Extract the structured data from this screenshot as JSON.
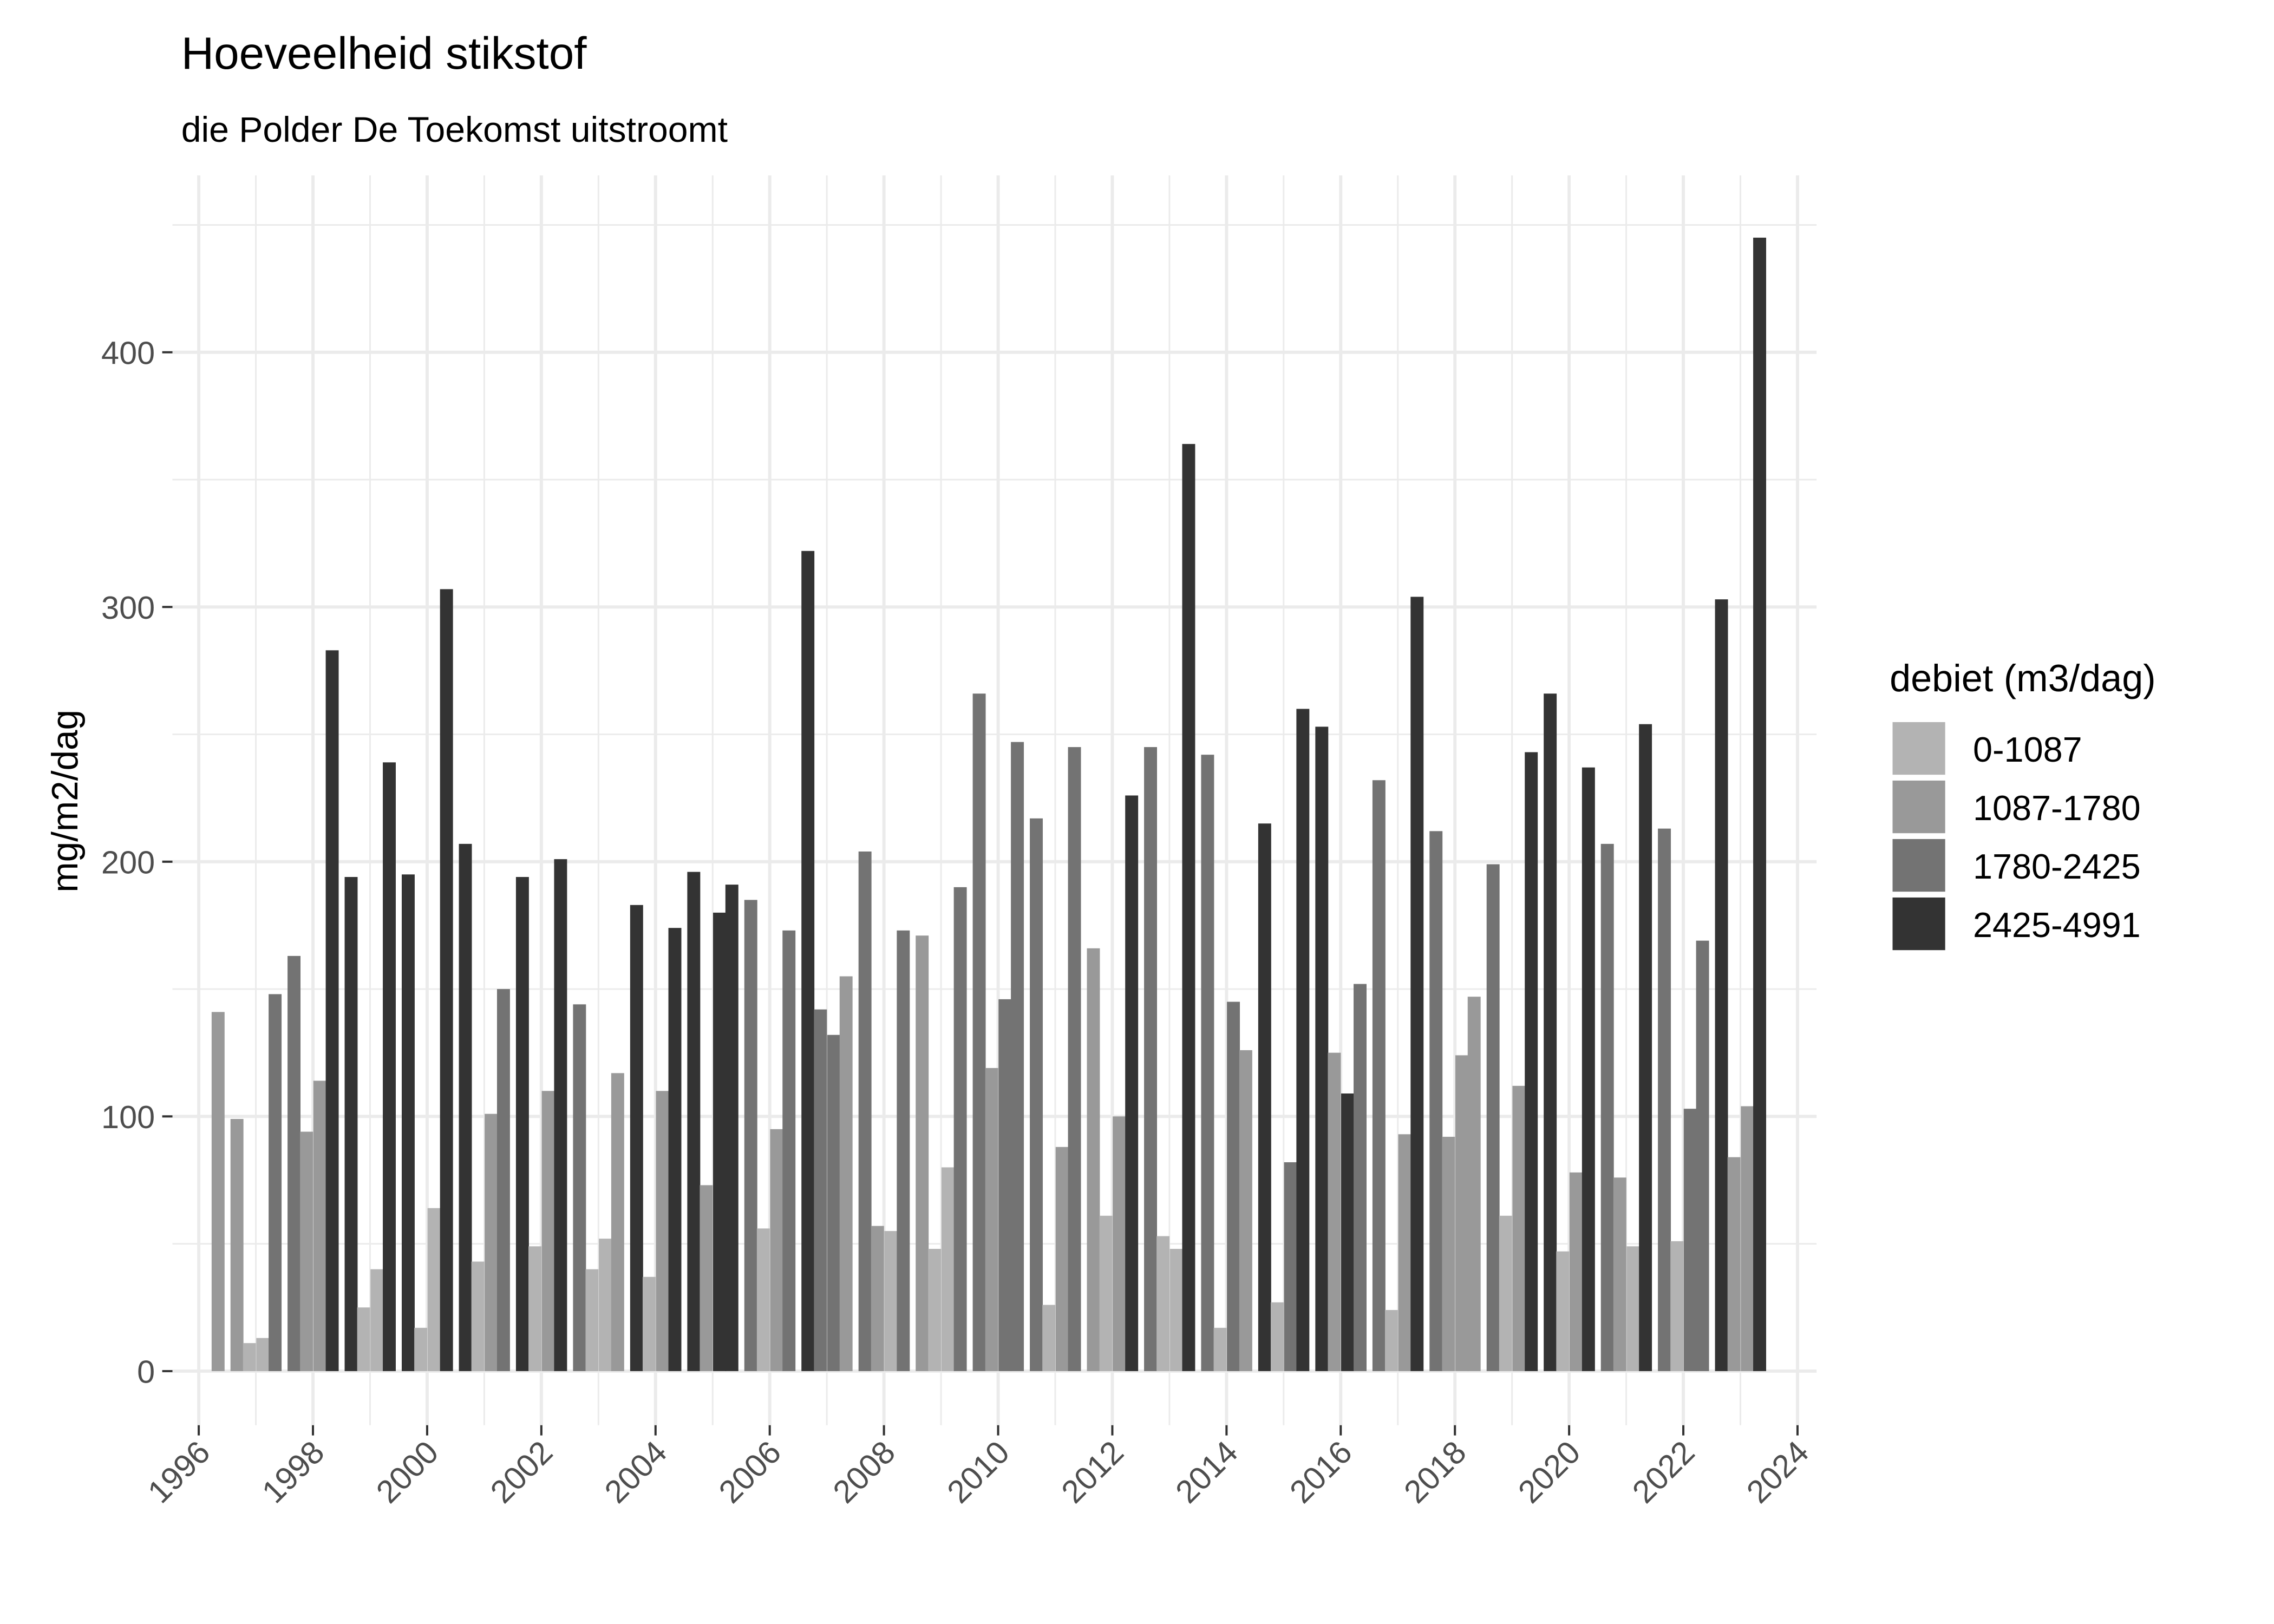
{
  "chart_data": {
    "type": "bar",
    "title": "Hoeveelheid stikstof",
    "subtitle": "die Polder De Toekomst uitstroomt",
    "xlabel": "",
    "ylabel": "mg/m2/dag",
    "xlim": [
      "1996-01-01",
      "2024-01-01"
    ],
    "ylim": [
      0,
      460
    ],
    "x_ticks": [
      "1996",
      "1998",
      "2000",
      "2002",
      "2004",
      "2006",
      "2008",
      "2010",
      "2012",
      "2014",
      "2016",
      "2018",
      "2020",
      "2022",
      "2024"
    ],
    "y_ticks": [
      0,
      100,
      200,
      300,
      400
    ],
    "grid": true,
    "legend": {
      "title": "debiet (m3/dag)",
      "position": "right",
      "entries": [
        {
          "label": "0-1087",
          "color": "#b3b3b3"
        },
        {
          "label": "1087-1780",
          "color": "#999999"
        },
        {
          "label": "1780-2425",
          "color": "#737373"
        },
        {
          "label": "2425-4991",
          "color": "#333333"
        }
      ]
    },
    "columns": [
      "date",
      "value",
      "debiet"
    ],
    "rows": [
      [
        "1996-05-04",
        141,
        "1087-1780"
      ],
      [
        "1996-09-02",
        99,
        "1087-1780"
      ],
      [
        "1996-11-21",
        11,
        "0-1087"
      ],
      [
        "1997-02-14",
        13,
        "0-1087"
      ],
      [
        "1997-05-04",
        148,
        "1780-2425"
      ],
      [
        "1997-09-02",
        163,
        "1780-2425"
      ],
      [
        "1997-11-21",
        94,
        "1087-1780"
      ],
      [
        "1998-02-14",
        114,
        "1087-1780"
      ],
      [
        "1998-05-04",
        283,
        "2425-4991"
      ],
      [
        "1998-09-02",
        194,
        "2425-4991"
      ],
      [
        "1998-11-21",
        25,
        "0-1087"
      ],
      [
        "1999-02-14",
        40,
        "0-1087"
      ],
      [
        "1999-05-04",
        239,
        "2425-4991"
      ],
      [
        "1999-09-02",
        195,
        "2425-4991"
      ],
      [
        "1999-11-21",
        17,
        "0-1087"
      ],
      [
        "2000-02-14",
        64,
        "0-1087"
      ],
      [
        "2000-05-04",
        307,
        "2425-4991"
      ],
      [
        "2000-09-02",
        207,
        "2425-4991"
      ],
      [
        "2000-11-21",
        43,
        "0-1087"
      ],
      [
        "2001-02-14",
        101,
        "1087-1780"
      ],
      [
        "2001-05-04",
        150,
        "1780-2425"
      ],
      [
        "2001-09-02",
        194,
        "2425-4991"
      ],
      [
        "2001-11-21",
        49,
        "0-1087"
      ],
      [
        "2002-02-14",
        110,
        "1087-1780"
      ],
      [
        "2002-05-04",
        201,
        "2425-4991"
      ],
      [
        "2002-09-02",
        144,
        "1780-2425"
      ],
      [
        "2002-11-21",
        40,
        "0-1087"
      ],
      [
        "2003-02-14",
        52,
        "0-1087"
      ],
      [
        "2003-05-04",
        117,
        "1087-1780"
      ],
      [
        "2003-09-02",
        183,
        "2425-4991"
      ],
      [
        "2003-11-21",
        37,
        "0-1087"
      ],
      [
        "2004-02-14",
        110,
        "1087-1780"
      ],
      [
        "2004-05-04",
        174,
        "2425-4991"
      ],
      [
        "2004-09-02",
        196,
        "2425-4991"
      ],
      [
        "2004-11-21",
        73,
        "1087-1780"
      ],
      [
        "2005-02-14",
        180,
        "2425-4991"
      ],
      [
        "2005-05-04",
        191,
        "2425-4991"
      ],
      [
        "2005-09-02",
        185,
        "1780-2425"
      ],
      [
        "2005-11-21",
        56,
        "0-1087"
      ],
      [
        "2006-02-14",
        95,
        "1087-1780"
      ],
      [
        "2006-05-04",
        173,
        "1780-2425"
      ],
      [
        "2006-09-02",
        322,
        "2425-4991"
      ],
      [
        "2006-11-21",
        142,
        "1780-2425"
      ],
      [
        "2007-02-14",
        132,
        "1780-2425"
      ],
      [
        "2007-05-04",
        155,
        "1087-1780"
      ],
      [
        "2007-09-02",
        204,
        "1780-2425"
      ],
      [
        "2007-11-21",
        57,
        "1087-1780"
      ],
      [
        "2008-02-14",
        55,
        "0-1087"
      ],
      [
        "2008-05-04",
        173,
        "1780-2425"
      ],
      [
        "2008-09-02",
        171,
        "1087-1780"
      ],
      [
        "2008-11-21",
        48,
        "0-1087"
      ],
      [
        "2009-02-14",
        80,
        "0-1087"
      ],
      [
        "2009-05-04",
        190,
        "1780-2425"
      ],
      [
        "2009-09-02",
        266,
        "1780-2425"
      ],
      [
        "2009-11-21",
        119,
        "1087-1780"
      ],
      [
        "2010-02-14",
        146,
        "1780-2425"
      ],
      [
        "2010-05-04",
        247,
        "1780-2425"
      ],
      [
        "2010-09-02",
        217,
        "1780-2425"
      ],
      [
        "2010-11-21",
        26,
        "0-1087"
      ],
      [
        "2011-02-14",
        88,
        "1087-1780"
      ],
      [
        "2011-05-04",
        245,
        "1780-2425"
      ],
      [
        "2011-09-02",
        166,
        "1087-1780"
      ],
      [
        "2011-11-21",
        61,
        "0-1087"
      ],
      [
        "2012-02-14",
        100,
        "1087-1780"
      ],
      [
        "2012-05-04",
        226,
        "2425-4991"
      ],
      [
        "2012-09-02",
        245,
        "1780-2425"
      ],
      [
        "2012-11-21",
        53,
        "0-1087"
      ],
      [
        "2013-02-14",
        48,
        "0-1087"
      ],
      [
        "2013-05-04",
        364,
        "2425-4991"
      ],
      [
        "2013-09-02",
        242,
        "1780-2425"
      ],
      [
        "2013-11-21",
        17,
        "0-1087"
      ],
      [
        "2014-02-14",
        145,
        "1780-2425"
      ],
      [
        "2014-05-04",
        126,
        "1087-1780"
      ],
      [
        "2014-09-02",
        215,
        "2425-4991"
      ],
      [
        "2014-11-21",
        27,
        "0-1087"
      ],
      [
        "2015-02-14",
        82,
        "1780-2425"
      ],
      [
        "2015-05-04",
        260,
        "2425-4991"
      ],
      [
        "2015-09-02",
        253,
        "2425-4991"
      ],
      [
        "2015-11-21",
        125,
        "1087-1780"
      ],
      [
        "2016-02-14",
        109,
        "2425-4991"
      ],
      [
        "2016-05-04",
        152,
        "1780-2425"
      ],
      [
        "2016-09-02",
        232,
        "1780-2425"
      ],
      [
        "2016-11-21",
        24,
        "0-1087"
      ],
      [
        "2017-02-14",
        93,
        "1087-1780"
      ],
      [
        "2017-05-04",
        304,
        "2425-4991"
      ],
      [
        "2017-09-02",
        212,
        "1780-2425"
      ],
      [
        "2017-11-21",
        92,
        "1087-1780"
      ],
      [
        "2018-02-14",
        124,
        "1087-1780"
      ],
      [
        "2018-05-04",
        147,
        "1087-1780"
      ],
      [
        "2018-09-02",
        199,
        "1780-2425"
      ],
      [
        "2018-11-21",
        61,
        "0-1087"
      ],
      [
        "2019-02-14",
        112,
        "1087-1780"
      ],
      [
        "2019-05-04",
        243,
        "2425-4991"
      ],
      [
        "2019-09-02",
        266,
        "2425-4991"
      ],
      [
        "2019-11-21",
        47,
        "0-1087"
      ],
      [
        "2020-02-14",
        78,
        "1087-1780"
      ],
      [
        "2020-05-04",
        237,
        "2425-4991"
      ],
      [
        "2020-09-02",
        207,
        "1780-2425"
      ],
      [
        "2020-11-21",
        76,
        "1087-1780"
      ],
      [
        "2021-02-14",
        49,
        "0-1087"
      ],
      [
        "2021-05-04",
        254,
        "2425-4991"
      ],
      [
        "2021-09-02",
        213,
        "1780-2425"
      ],
      [
        "2021-11-21",
        51,
        "0-1087"
      ],
      [
        "2022-02-14",
        103,
        "1780-2425"
      ],
      [
        "2022-05-04",
        169,
        "1780-2425"
      ],
      [
        "2022-09-02",
        303,
        "2425-4991"
      ],
      [
        "2022-11-21",
        84,
        "1087-1780"
      ],
      [
        "2023-02-14",
        104,
        "1087-1780"
      ],
      [
        "2023-05-04",
        445,
        "2425-4991"
      ]
    ]
  }
}
